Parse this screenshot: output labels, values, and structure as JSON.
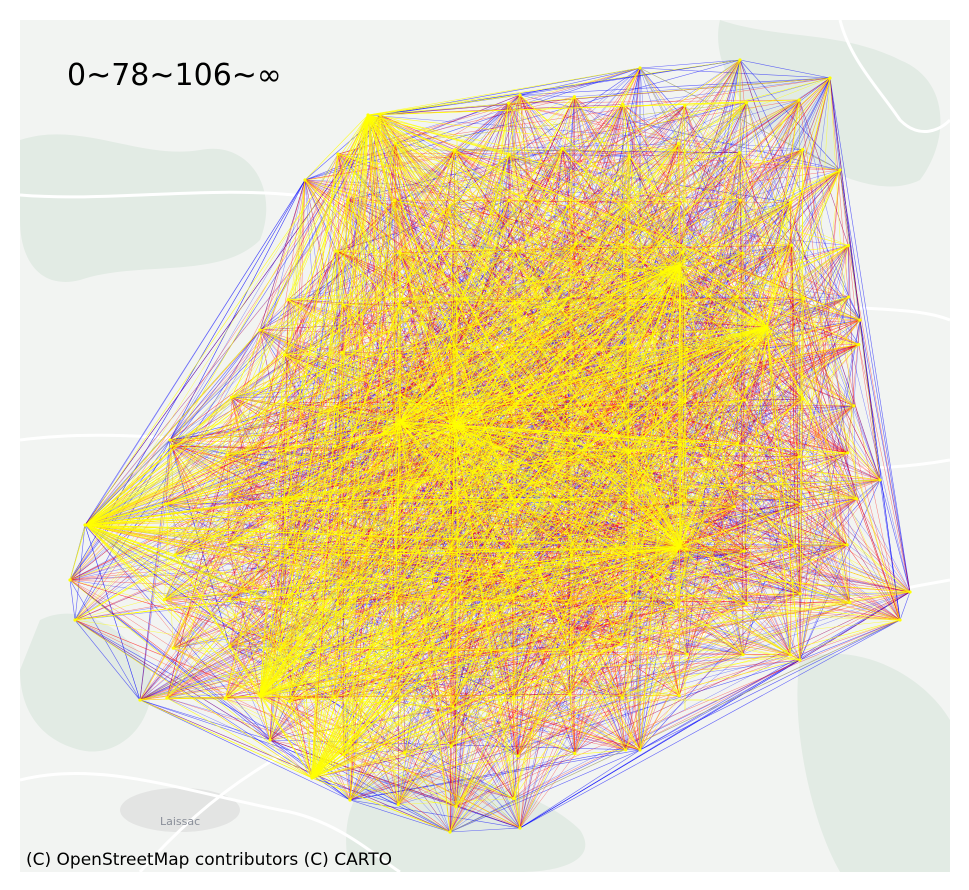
{
  "map": {
    "title": "0~78~106~∞",
    "attribution": "(C) OpenStreetMap contributors (C) CARTO",
    "place_labels": [
      "Laissac"
    ],
    "edge_classes": [
      {
        "range": "0~78",
        "color": "#0000ff"
      },
      {
        "range": "78~106",
        "color": "#ff0000"
      },
      {
        "range": "106~∞",
        "color": "#ffff00"
      }
    ],
    "colors": {
      "frame_border": "#ffffff",
      "land": "#f2f4f2",
      "forest": "#e2ebe4",
      "urban": "#d9d9d9",
      "road": "#ffffff"
    }
  }
}
